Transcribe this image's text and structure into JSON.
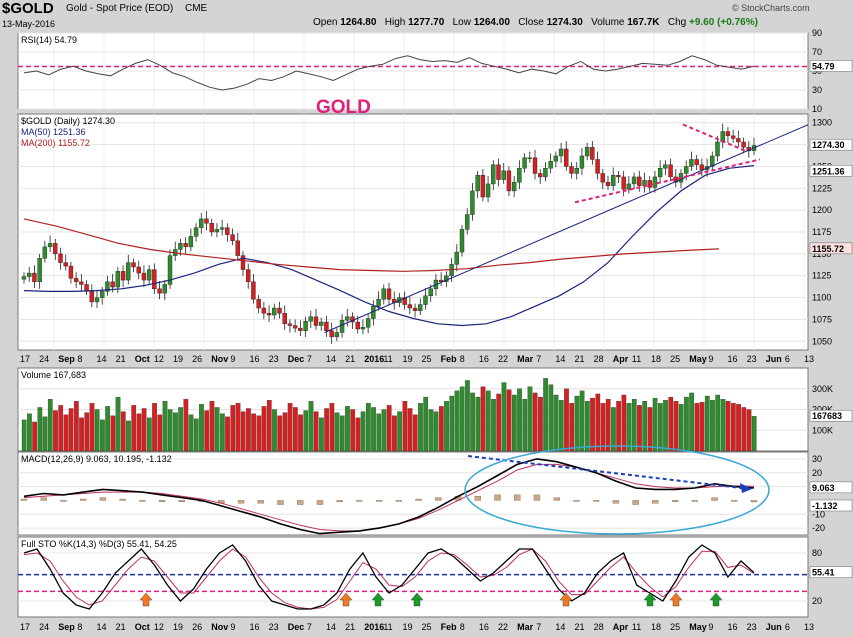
{
  "header": {
    "symbol": "$GOLD",
    "name": "Gold - Spot Price (EOD)",
    "exchange": "CME",
    "date": "13-May-2016",
    "watermark": "© StockCharts.com",
    "open_label": "Open",
    "open": "1264.80",
    "high_label": "High",
    "high": "1277.70",
    "low_label": "Low",
    "low": "1264.00",
    "close_label": "Close",
    "close": "1274.30",
    "volume_label": "Volume",
    "volume": "167.7K",
    "chg_label": "Chg",
    "chg": "+9.60 (+0.76%)"
  },
  "annotation": "GOLD",
  "colors": {
    "up": "#2e8b2e",
    "down": "#d42020",
    "ma50": "#1a237e",
    "ma200": "#b22222",
    "annotation": "#e0207a",
    "macd_dash": "#1a3fbf",
    "ellipse": "#3aa7d6",
    "stoch_blue": "#1a2fa8",
    "stoch_pink": "#e0207a",
    "arrow_orange": "#f07820",
    "arrow_green": "#1a9a2a"
  },
  "chart_data": [
    {
      "type": "line",
      "title": "RSI(14) 54.79",
      "ylim": [
        10,
        90
      ],
      "ticks": [
        "90",
        "70",
        "50",
        "30",
        "10"
      ],
      "last_value_label": "54.79",
      "reference_line": 54.79,
      "values": [
        48,
        50,
        46,
        52,
        55,
        50,
        47,
        45,
        52,
        58,
        62,
        56,
        48,
        44,
        38,
        33,
        30,
        32,
        36,
        42,
        40,
        44,
        50,
        47,
        44,
        40,
        46,
        52,
        55,
        57,
        63,
        66,
        62,
        60,
        61,
        59,
        64,
        58,
        55,
        52,
        48,
        52,
        50,
        47,
        55,
        60,
        52,
        50,
        52,
        55,
        58,
        57,
        56,
        60,
        66,
        62,
        56,
        54,
        52,
        55
      ]
    },
    {
      "type": "candlestick",
      "title": "$GOLD (Daily) 1274.30",
      "series_labels": [
        "$GOLD (Daily) 1274.30",
        "MA(50) 1251.36",
        "MA(200) 1155.72"
      ],
      "ylim": [
        1040,
        1310
      ],
      "price_ticks": [
        "1300",
        "1275",
        "1250",
        "1225",
        "1200",
        "1175",
        "1150",
        "1125",
        "1100",
        "1075",
        "1050"
      ],
      "last_price_labels": [
        "1274.30",
        "1251.36",
        "1155.72"
      ],
      "closes": [
        1124,
        1128,
        1118,
        1145,
        1158,
        1162,
        1150,
        1140,
        1136,
        1122,
        1118,
        1115,
        1108,
        1095,
        1100,
        1107,
        1118,
        1112,
        1130,
        1120,
        1140,
        1135,
        1128,
        1120,
        1132,
        1110,
        1105,
        1115,
        1148,
        1155,
        1162,
        1158,
        1170,
        1180,
        1190,
        1185,
        1175,
        1178,
        1180,
        1172,
        1165,
        1148,
        1132,
        1118,
        1098,
        1088,
        1082,
        1080,
        1088,
        1082,
        1070,
        1068,
        1065,
        1062,
        1073,
        1078,
        1068,
        1072,
        1062,
        1055,
        1060,
        1074,
        1078,
        1072,
        1064,
        1066,
        1076,
        1090,
        1098,
        1110,
        1098,
        1094,
        1100,
        1092,
        1088,
        1085,
        1092,
        1102,
        1110,
        1120,
        1118,
        1125,
        1138,
        1152,
        1178,
        1195,
        1222,
        1240,
        1215,
        1230,
        1252,
        1235,
        1245,
        1222,
        1232,
        1248,
        1260,
        1260,
        1242,
        1238,
        1248,
        1256,
        1262,
        1270,
        1250,
        1242,
        1248,
        1262,
        1272,
        1258,
        1242,
        1232,
        1228,
        1240,
        1238,
        1224,
        1230,
        1238,
        1228,
        1234,
        1226,
        1238,
        1248,
        1252,
        1238,
        1232,
        1242,
        1250,
        1258,
        1252,
        1246,
        1250,
        1262,
        1278,
        1290,
        1285,
        1282,
        1278,
        1272,
        1268,
        1274
      ],
      "ma50": [
        1108,
        1107,
        1107,
        1108,
        1110,
        1114,
        1120,
        1128,
        1138,
        1145,
        1140,
        1132,
        1120,
        1108,
        1095,
        1084,
        1076,
        1070,
        1068,
        1070,
        1078,
        1090,
        1102,
        1118,
        1140,
        1170,
        1198,
        1222,
        1240,
        1248,
        1251
      ],
      "ma200": [
        1190,
        1182,
        1172,
        1162,
        1155,
        1150,
        1146,
        1142,
        1138,
        1135,
        1132,
        1131,
        1130,
        1131,
        1133,
        1137,
        1140,
        1144,
        1147,
        1150,
        1152,
        1154,
        1155.72
      ],
      "annotations": {
        "trend_line": [
          [
            1060,
            0.28
          ],
          [
            1300,
            1.0
          ]
        ],
        "triangle_upper": "falling",
        "triangle_lower": "rising"
      }
    },
    {
      "type": "bar",
      "title": "Volume 167,683",
      "ylim": [
        0,
        400
      ],
      "ticks": [
        "300K",
        "200K",
        "100K"
      ],
      "last_value_label": "167683",
      "values": [
        150,
        180,
        140,
        210,
        165,
        250,
        195,
        220,
        175,
        205,
        240,
        160,
        185,
        230,
        200,
        150,
        215,
        170,
        260,
        190,
        145,
        220,
        180,
        205,
        160,
        230,
        175,
        240,
        200,
        185,
        210,
        250,
        175,
        155,
        225,
        195,
        240,
        210,
        180,
        165,
        220,
        230,
        190,
        205,
        180,
        170,
        215,
        245,
        200,
        170,
        185,
        230,
        210,
        175,
        195,
        240,
        190,
        160,
        205,
        230,
        185,
        170,
        215,
        200,
        160,
        190,
        230,
        210,
        180,
        200,
        220,
        170,
        190,
        240,
        205,
        175,
        230,
        260,
        200,
        190,
        215,
        240,
        265,
        290,
        310,
        340,
        280,
        260,
        310,
        290,
        250,
        275,
        330,
        295,
        270,
        300,
        250,
        310,
        280,
        260,
        350,
        320,
        270,
        245,
        300,
        230,
        265,
        290,
        240,
        255,
        275,
        230,
        250,
        210,
        240,
        270,
        230,
        250,
        220,
        240,
        210,
        255,
        230,
        245,
        260,
        240,
        225,
        260,
        280,
        230,
        235,
        265,
        245,
        270,
        250,
        240,
        230,
        225,
        210,
        200,
        168
      ]
    },
    {
      "type": "line",
      "title": "MACD(12,26,9) 9.063, 10.195, -1.132",
      "ylim": [
        -25,
        35
      ],
      "ticks": [
        "30",
        "20",
        "10",
        "-10",
        "-20"
      ],
      "last_value_labels": [
        "9.063",
        "-1.132"
      ],
      "macd": [
        3,
        5,
        4,
        6,
        8,
        7,
        6,
        4,
        2,
        0,
        -4,
        -8,
        -12,
        -17,
        -21,
        -24,
        -23,
        -22,
        -20,
        -17,
        -12,
        -5,
        3,
        10,
        18,
        26,
        30,
        28,
        24,
        20,
        14,
        9,
        8,
        8,
        9,
        12,
        10,
        9.06
      ],
      "signal": [
        2,
        3,
        4,
        5,
        6,
        6,
        6,
        5,
        3,
        1,
        -2,
        -6,
        -10,
        -14,
        -18,
        -21,
        -22,
        -22,
        -20,
        -17,
        -13,
        -7,
        0,
        7,
        14,
        22,
        26,
        26,
        24,
        20,
        16,
        12,
        10,
        9,
        9,
        10,
        10.5,
        10.195
      ],
      "histogram": [
        1,
        2,
        0,
        1,
        2,
        1,
        0,
        -1,
        -1,
        -1,
        -2,
        -2,
        -2,
        -3,
        -3,
        -3,
        -1,
        0,
        0,
        0,
        1,
        2,
        3,
        3,
        4,
        4,
        4,
        2,
        0,
        0,
        -2,
        -3,
        -2,
        -1,
        0,
        2,
        -0.5,
        -1.132
      ]
    },
    {
      "type": "line",
      "title": "Full STO %K(14,3) %D(3) 55.41, 54.25",
      "ylim": [
        0,
        100
      ],
      "ticks": [
        "80",
        "20"
      ],
      "last_value_label": "55.41",
      "k": [
        80,
        85,
        60,
        30,
        15,
        10,
        30,
        55,
        70,
        85,
        65,
        40,
        20,
        35,
        60,
        80,
        90,
        70,
        40,
        20,
        15,
        10,
        10,
        15,
        30,
        60,
        80,
        50,
        30,
        40,
        60,
        80,
        85,
        75,
        60,
        45,
        55,
        70,
        85,
        85,
        60,
        35,
        20,
        30,
        55,
        70,
        80,
        40,
        30,
        20,
        45,
        75,
        90,
        80,
        50,
        70,
        55.41
      ],
      "d": [
        78,
        80,
        70,
        45,
        25,
        15,
        20,
        40,
        60,
        75,
        70,
        50,
        30,
        30,
        50,
        70,
        85,
        75,
        50,
        30,
        18,
        12,
        10,
        12,
        22,
        45,
        68,
        60,
        40,
        38,
        50,
        70,
        80,
        78,
        65,
        50,
        52,
        62,
        78,
        85,
        70,
        45,
        28,
        28,
        45,
        62,
        75,
        55,
        38,
        25,
        38,
        62,
        82,
        82,
        62,
        65,
        54.25
      ],
      "markers": [
        {
          "type": "orange-arrow"
        },
        {
          "type": "orange-arrow"
        },
        {
          "type": "green-arrow"
        },
        {
          "type": "green-arrow"
        },
        {
          "type": "orange-arrow"
        },
        {
          "type": "green-arrow"
        },
        {
          "type": "orange-arrow"
        },
        {
          "type": "green-arrow"
        }
      ]
    }
  ],
  "x_axis": {
    "top_labels": [
      "17",
      "24",
      "Sep",
      "8",
      "14",
      "21",
      "Oct",
      "12",
      "19",
      "26",
      "Nov",
      "9",
      "16",
      "23",
      "Dec",
      "7",
      "14",
      "21",
      "2016",
      "11",
      "19",
      "25",
      "Feb",
      "8",
      "16",
      "22",
      "Mar",
      "7",
      "14",
      "21",
      "28",
      "Apr",
      "11",
      "18",
      "25",
      "May",
      "9",
      "16",
      "23",
      "Jun",
      "6",
      "13"
    ],
    "bottom_labels": [
      "17",
      "24",
      "Sep",
      "8",
      "14",
      "21",
      "Oct",
      "12",
      "19",
      "26",
      "Nov",
      "9",
      "16",
      "23",
      "Dec",
      "7",
      "14",
      "21",
      "2016",
      "11",
      "19",
      "25",
      "Feb",
      "8",
      "16",
      "22",
      "Mar",
      "7",
      "14",
      "21",
      "28",
      "Apr",
      "11",
      "18",
      "25",
      "May",
      "9",
      "16",
      "23",
      "Jun",
      "6",
      "13"
    ]
  }
}
